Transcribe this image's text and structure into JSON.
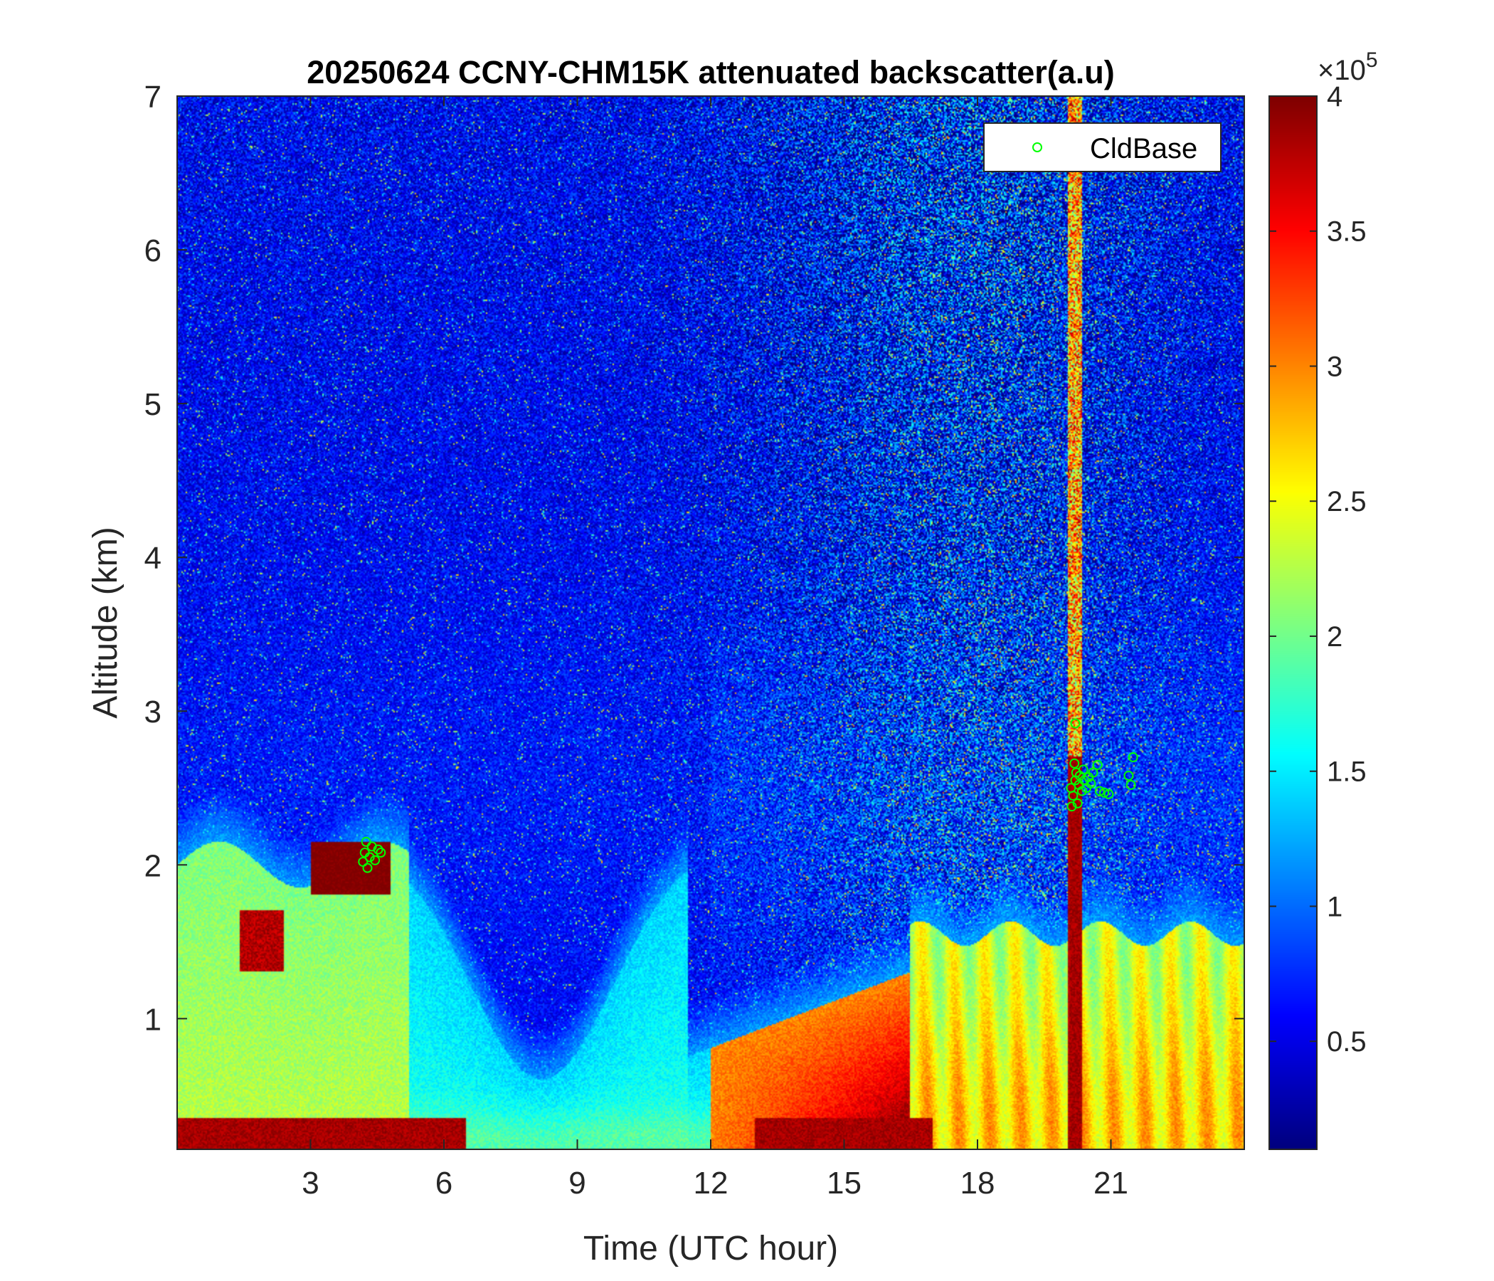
{
  "chart_data": {
    "type": "heatmap",
    "title": "20250624 CCNY-CHM15K attenuated backscatter(a.u)",
    "xlabel": "Time (UTC hour)",
    "ylabel": "Altitude (km)",
    "xlim": [
      0,
      24
    ],
    "ylim": [
      0.15,
      7
    ],
    "x_ticks": [
      3,
      6,
      9,
      12,
      15,
      18,
      21
    ],
    "x_tick_labels": [
      "3",
      "6",
      "9",
      "12",
      "15",
      "18",
      "21"
    ],
    "y_ticks": [
      1,
      2,
      3,
      4,
      5,
      6,
      7
    ],
    "y_tick_labels": [
      "1",
      "2",
      "3",
      "4",
      "5",
      "6",
      "7"
    ],
    "colormap": "jet",
    "colorbar": {
      "clim": [
        0.1,
        4.0
      ],
      "ticks": [
        0.5,
        1,
        1.5,
        2,
        2.5,
        3,
        3.5,
        4
      ],
      "tick_labels": [
        "0.5",
        "1",
        "1.5",
        "2",
        "2.5",
        "3",
        "3.5",
        "4"
      ],
      "exponent_prefix": "×10",
      "exponent": "5",
      "units_multiplier": 100000
    },
    "legend": {
      "location": "top-right",
      "entries": [
        {
          "label": "CldBase",
          "marker": "circle-open",
          "color": "#00ff00"
        }
      ]
    },
    "series": [
      {
        "name": "CldBase",
        "kind": "scatter",
        "color": "#00ff00",
        "points": [
          {
            "x": 4.18,
            "y": 2.02
          },
          {
            "x": 4.22,
            "y": 2.08
          },
          {
            "x": 4.28,
            "y": 1.98
          },
          {
            "x": 4.33,
            "y": 2.05
          },
          {
            "x": 4.38,
            "y": 2.12
          },
          {
            "x": 4.45,
            "y": 2.03
          },
          {
            "x": 4.52,
            "y": 2.1
          },
          {
            "x": 4.58,
            "y": 2.08
          },
          {
            "x": 4.25,
            "y": 2.15
          },
          {
            "x": 20.1,
            "y": 2.5
          },
          {
            "x": 20.15,
            "y": 2.45
          },
          {
            "x": 20.2,
            "y": 2.55
          },
          {
            "x": 20.22,
            "y": 2.6
          },
          {
            "x": 20.25,
            "y": 2.4
          },
          {
            "x": 20.28,
            "y": 2.52
          },
          {
            "x": 20.3,
            "y": 2.58
          },
          {
            "x": 20.35,
            "y": 2.48
          },
          {
            "x": 20.38,
            "y": 2.62
          },
          {
            "x": 20.4,
            "y": 2.55
          },
          {
            "x": 20.45,
            "y": 2.5
          },
          {
            "x": 20.5,
            "y": 2.57
          },
          {
            "x": 20.55,
            "y": 2.53
          },
          {
            "x": 20.6,
            "y": 2.6
          },
          {
            "x": 20.2,
            "y": 2.92
          },
          {
            "x": 20.7,
            "y": 2.65
          },
          {
            "x": 20.75,
            "y": 2.48
          },
          {
            "x": 20.85,
            "y": 2.47
          },
          {
            "x": 20.95,
            "y": 2.46
          },
          {
            "x": 21.4,
            "y": 2.58
          },
          {
            "x": 21.45,
            "y": 2.52
          },
          {
            "x": 21.5,
            "y": 2.7
          },
          {
            "x": 20.12,
            "y": 2.38
          },
          {
            "x": 20.18,
            "y": 2.66
          }
        ]
      }
    ]
  }
}
